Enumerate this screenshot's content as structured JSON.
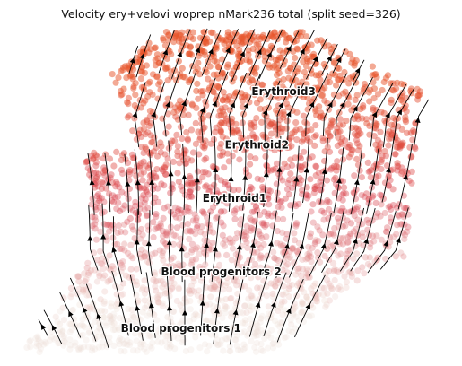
{
  "chart_data": {
    "type": "scatter",
    "title": "Velocity ery+velovi woprep nMark236 total (split seed=326)",
    "xlabel": "",
    "ylabel": "",
    "grid": false,
    "legend": "none",
    "color_low": "#eee0d6",
    "color_mid": "#d9434f",
    "color_high": "#e8542a",
    "arrow_color": "#000000",
    "clusters": [
      {
        "name": "Erythroid3",
        "x": 0.62,
        "y": 0.79
      },
      {
        "name": "Erythroid2",
        "x": 0.56,
        "y": 0.63
      },
      {
        "name": "Erythroid1",
        "x": 0.51,
        "y": 0.47
      },
      {
        "name": "Blood progenitors 2",
        "x": 0.48,
        "y": 0.25
      },
      {
        "name": "Blood progenitors 1",
        "x": 0.39,
        "y": 0.08
      }
    ]
  }
}
